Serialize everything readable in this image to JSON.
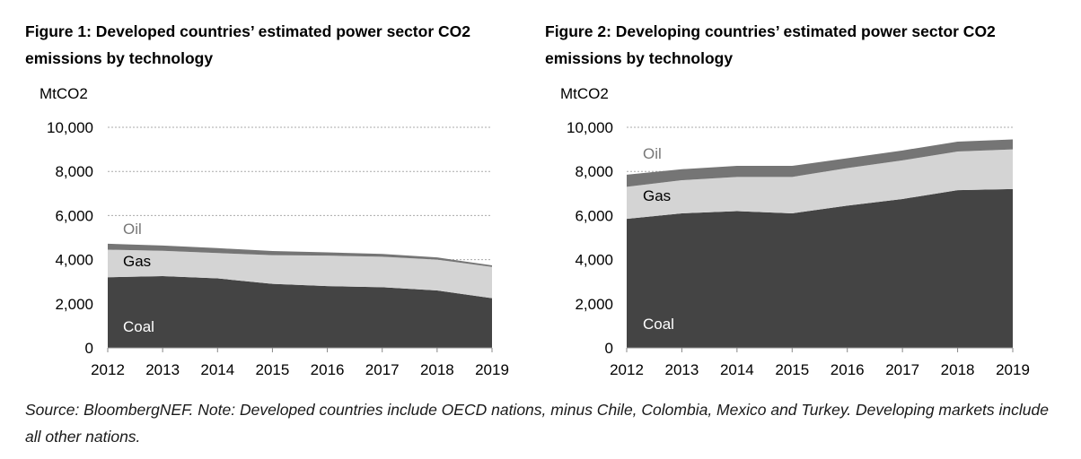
{
  "chart_data": [
    {
      "type": "area",
      "title": "Figure 1: Developed countries’ estimated power sector CO2 emissions by technology",
      "ylabel": "MtCO2",
      "ylim": [
        0,
        10000
      ],
      "yticks": [
        "0",
        "2,000",
        "4,000",
        "6,000",
        "8,000",
        "10,000"
      ],
      "ytick_values": [
        0,
        2000,
        4000,
        6000,
        8000,
        10000
      ],
      "x": [
        "2012",
        "2013",
        "2014",
        "2015",
        "2016",
        "2017",
        "2018",
        "2019"
      ],
      "stacked": true,
      "series": [
        {
          "name": "Coal",
          "values": [
            3200,
            3250,
            3150,
            2900,
            2800,
            2750,
            2600,
            2250
          ]
        },
        {
          "name": "Gas",
          "values": [
            1250,
            1150,
            1150,
            1300,
            1380,
            1380,
            1400,
            1420
          ]
        },
        {
          "name": "Oil",
          "values": [
            270,
            240,
            220,
            190,
            150,
            130,
            100,
            70
          ]
        }
      ],
      "grid": true,
      "legend": "inline labels"
    },
    {
      "type": "area",
      "title": "Figure 2: Developing countries’ estimated power sector CO2 emissions by technology",
      "ylabel": "MtCO2",
      "ylim": [
        0,
        10000
      ],
      "yticks": [
        "0",
        "2,000",
        "4,000",
        "6,000",
        "8,000",
        "10,000"
      ],
      "ytick_values": [
        0,
        2000,
        4000,
        6000,
        8000,
        10000
      ],
      "x": [
        "2012",
        "2013",
        "2014",
        "2015",
        "2016",
        "2017",
        "2018",
        "2019"
      ],
      "stacked": true,
      "series": [
        {
          "name": "Coal",
          "values": [
            5850,
            6100,
            6200,
            6100,
            6450,
            6750,
            7150,
            7200
          ]
        },
        {
          "name": "Gas",
          "values": [
            1450,
            1500,
            1550,
            1650,
            1700,
            1750,
            1750,
            1800
          ]
        },
        {
          "name": "Oil",
          "values": [
            550,
            500,
            500,
            500,
            450,
            450,
            450,
            450
          ]
        }
      ],
      "grid": true,
      "legend": "inline labels"
    }
  ],
  "colors": {
    "Coal": "#444444",
    "Gas": "#d4d4d4",
    "Oil": "#757575",
    "grid": "#aaaaaa",
    "axis": "#888888"
  },
  "note": "Source: BloombergNEF. Note: Developed countries include OECD nations, minus Chile, Colombia, Mexico and Turkey. Developing markets include all other nations."
}
